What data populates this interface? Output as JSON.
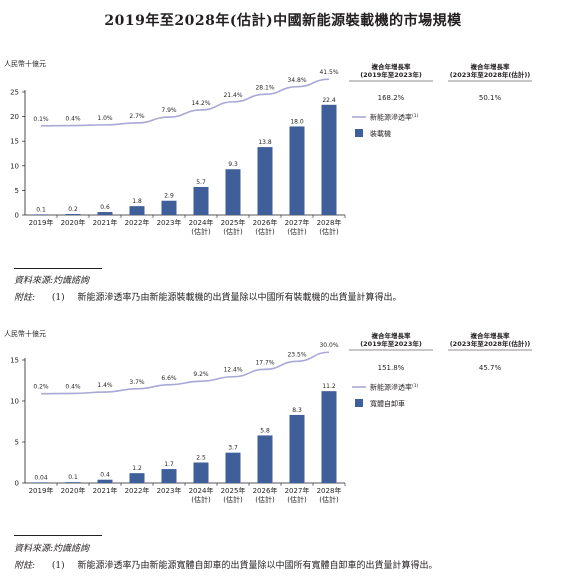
{
  "title": "2019年至2028年(估計)中國新能源裝載機的市場規模",
  "charts": [
    {
      "unit": "人民幣十億元",
      "source_label": "資料來源:灼識諮詢",
      "note_label": "附註:",
      "note_no": "(1)",
      "note_text": "新能源滲透率乃由新能源裝載機的出貨量除以中國所有裝載機的出貨量計算得出。"
    },
    {
      "unit": "人民幣十億元",
      "source_label": "資料來源:灼識諮詢",
      "note_label": "附註:",
      "note_no": "(1)",
      "note_text": "新能源滲透率乃由新能源寬體自卸車的出貨量除以中國所有寬體自卸車的出貨量計算得出。"
    }
  ],
  "chart_data": [
    {
      "type": "bar",
      "categories": [
        "2019年",
        "2020年",
        "2021年",
        "2022年",
        "2023年",
        "2024年\n(估計)",
        "2025年\n(估計)",
        "2026年\n(估計)",
        "2027年\n(估計)",
        "2028年\n(估計)"
      ],
      "series": [
        {
          "name": "裝載機",
          "type": "bar",
          "values": [
            0.1,
            0.2,
            0.6,
            1.8,
            2.9,
            5.7,
            9.3,
            13.8,
            18.0,
            22.4
          ],
          "labels": [
            "0.1",
            "0.2",
            "0.6",
            "1.8",
            "2.9",
            "5.7",
            "9.3",
            "13.8",
            "18.0",
            "22.4"
          ]
        },
        {
          "name": "新能源滲透率(1)",
          "type": "line",
          "labels": [
            "0.1%",
            "0.4%",
            "1.0%",
            "2.7%",
            "7.9%",
            "14.2%",
            "21.4%",
            "28.1%",
            "34.8%",
            "41.5%"
          ]
        }
      ],
      "line_values_pct": [
        0.1,
        0.4,
        1.0,
        2.7,
        7.9,
        14.2,
        21.4,
        28.1,
        34.8,
        41.5
      ],
      "ylim": [
        0,
        25
      ],
      "yticks": [
        "0",
        "5",
        "10",
        "15",
        "20",
        "25"
      ],
      "ytick_values": [
        0,
        5,
        10,
        15,
        20,
        25
      ],
      "cagr": {
        "headers": [
          [
            "複合年增長率",
            "(2019年至2023年)"
          ],
          [
            "複合年增長率",
            "(2023年至2028年(估計))"
          ]
        ],
        "values": [
          "168.2%",
          "50.1%"
        ]
      },
      "colors": {
        "bar": "#3f5f9a",
        "line": "#a9a8d6"
      }
    },
    {
      "type": "bar",
      "categories": [
        "2019年",
        "2020年",
        "2021年",
        "2022年",
        "2023年",
        "2024年\n(估計)",
        "2025年\n(估計)",
        "2026年\n(估計)",
        "2027年\n(估計)",
        "2028年\n(估計)"
      ],
      "series": [
        {
          "name": "寬體自卸車",
          "type": "bar",
          "values": [
            0.04,
            0.1,
            0.4,
            1.2,
            1.7,
            2.5,
            3.7,
            5.8,
            8.3,
            11.2
          ],
          "labels": [
            "0.04",
            "0.1",
            "0.4",
            "1.2",
            "1.7",
            "2.5",
            "3.7",
            "5.8",
            "8.3",
            "11.2"
          ]
        },
        {
          "name": "新能源滲透率(1)",
          "type": "line",
          "labels": [
            "0.2%",
            "0.4%",
            "1.4%",
            "3.7%",
            "6.6%",
            "9.2%",
            "12.4%",
            "17.7%",
            "23.5%",
            "30.0%"
          ]
        }
      ],
      "line_values_pct": [
        0.2,
        0.4,
        1.4,
        3.7,
        6.6,
        9.2,
        12.4,
        17.7,
        23.5,
        30.0
      ],
      "ylim": [
        0,
        15
      ],
      "yticks": [
        "0",
        "5",
        "10",
        "15"
      ],
      "ytick_values": [
        0,
        5,
        10,
        15
      ],
      "cagr": {
        "headers": [
          [
            "複合年增長率",
            "(2019年至2023年)"
          ],
          [
            "複合年增長率",
            "(2023年至2028年(估計))"
          ]
        ],
        "values": [
          "151.8%",
          "45.7%"
        ]
      },
      "colors": {
        "bar": "#3f5f9a",
        "line": "#a9a8d6"
      }
    }
  ]
}
